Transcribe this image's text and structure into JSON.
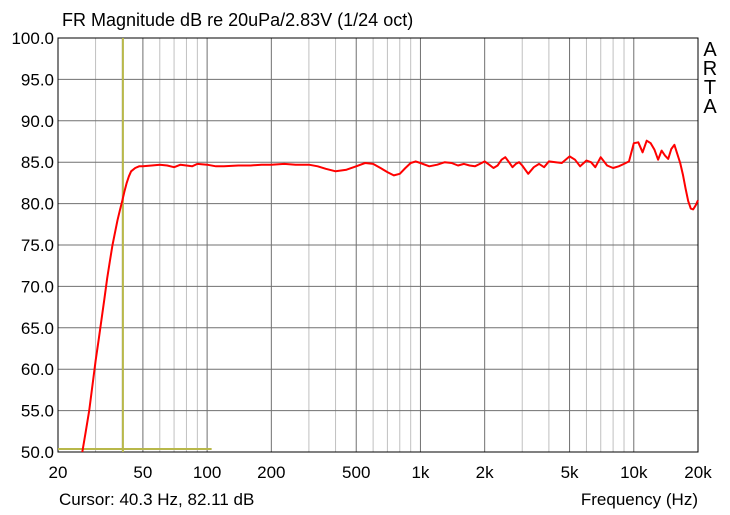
{
  "chart_data": {
    "type": "line",
    "title": "FR Magnitude dB re 20uPa/2.83V (1/24 oct)",
    "xlabel": "Frequency (Hz)",
    "ylabel": "",
    "x_scale": "log",
    "xlim": [
      20,
      20000
    ],
    "ylim": [
      50,
      100
    ],
    "grid": true,
    "y_ticks": [
      "100.0",
      "95.0",
      "90.0",
      "85.0",
      "80.0",
      "75.0",
      "70.0",
      "65.0",
      "60.0",
      "55.0",
      "50.0"
    ],
    "x_ticks": [
      {
        "value": 20,
        "label": "20"
      },
      {
        "value": 50,
        "label": "50"
      },
      {
        "value": 100,
        "label": "100"
      },
      {
        "value": 200,
        "label": "200"
      },
      {
        "value": 500,
        "label": "500"
      },
      {
        "value": 1000,
        "label": "1k"
      },
      {
        "value": 2000,
        "label": "2k"
      },
      {
        "value": 5000,
        "label": "5k"
      },
      {
        "value": 10000,
        "label": "10k"
      },
      {
        "value": 20000,
        "label": "20k"
      }
    ],
    "series": [
      {
        "color": "#ff0000",
        "x": [
          26,
          27,
          28,
          29,
          30,
          31,
          32,
          33,
          34,
          35,
          36,
          37,
          38,
          39,
          40,
          41,
          42,
          43,
          44,
          46,
          48,
          50,
          55,
          60,
          65,
          70,
          75,
          80,
          85,
          90,
          100,
          110,
          120,
          140,
          160,
          180,
          200,
          230,
          260,
          300,
          330,
          360,
          400,
          450,
          500,
          550,
          600,
          650,
          700,
          750,
          800,
          850,
          900,
          950,
          1000,
          1100,
          1200,
          1300,
          1400,
          1500,
          1600,
          1700,
          1800,
          1900,
          2000,
          2100,
          2200,
          2300,
          2400,
          2500,
          2600,
          2700,
          2800,
          2900,
          3000,
          3200,
          3400,
          3600,
          3800,
          4000,
          4300,
          4600,
          5000,
          5300,
          5600,
          6000,
          6300,
          6600,
          7000,
          7500,
          8000,
          8500,
          9000,
          9500,
          10000,
          10500,
          11000,
          11500,
          12000,
          12500,
          13000,
          13500,
          14000,
          14500,
          15000,
          15500,
          16000,
          16500,
          17000,
          17500,
          18000,
          18500,
          19000,
          19500,
          20000
        ],
        "values": [
          50.0,
          52.5,
          55.0,
          58.0,
          61.0,
          63.5,
          66.0,
          68.5,
          71.0,
          73.0,
          75.0,
          76.5,
          78.0,
          79.2,
          80.3,
          81.5,
          82.5,
          83.3,
          83.9,
          84.3,
          84.5,
          84.5,
          84.6,
          84.7,
          84.6,
          84.4,
          84.7,
          84.6,
          84.5,
          84.8,
          84.7,
          84.5,
          84.5,
          84.6,
          84.6,
          84.7,
          84.7,
          84.8,
          84.7,
          84.7,
          84.5,
          84.2,
          83.9,
          84.1,
          84.5,
          84.9,
          84.8,
          84.3,
          83.8,
          83.4,
          83.6,
          84.3,
          84.9,
          85.1,
          84.9,
          84.5,
          84.7,
          85.0,
          84.9,
          84.6,
          84.8,
          84.6,
          84.5,
          84.8,
          85.1,
          84.7,
          84.3,
          84.6,
          85.3,
          85.6,
          85.0,
          84.4,
          84.8,
          85.0,
          84.6,
          83.6,
          84.4,
          84.8,
          84.4,
          85.1,
          85.0,
          84.9,
          85.7,
          85.3,
          84.5,
          85.2,
          85.0,
          84.4,
          85.6,
          84.6,
          84.3,
          84.5,
          84.8,
          85.1,
          87.3,
          87.4,
          86.2,
          87.6,
          87.3,
          86.5,
          85.3,
          86.4,
          85.8,
          85.4,
          86.6,
          87.1,
          86.0,
          84.9,
          83.5,
          81.8,
          80.3,
          79.4,
          79.3,
          79.8,
          80.4
        ],
        "width": 2
      }
    ],
    "cursor": {
      "x": 40.3,
      "y": 82.11,
      "color": "#b8b84a"
    }
  },
  "cursor_readout": "Cursor: 40.3 Hz, 82.11 dB",
  "logo_letters": [
    "A",
    "R",
    "T",
    "A"
  ]
}
